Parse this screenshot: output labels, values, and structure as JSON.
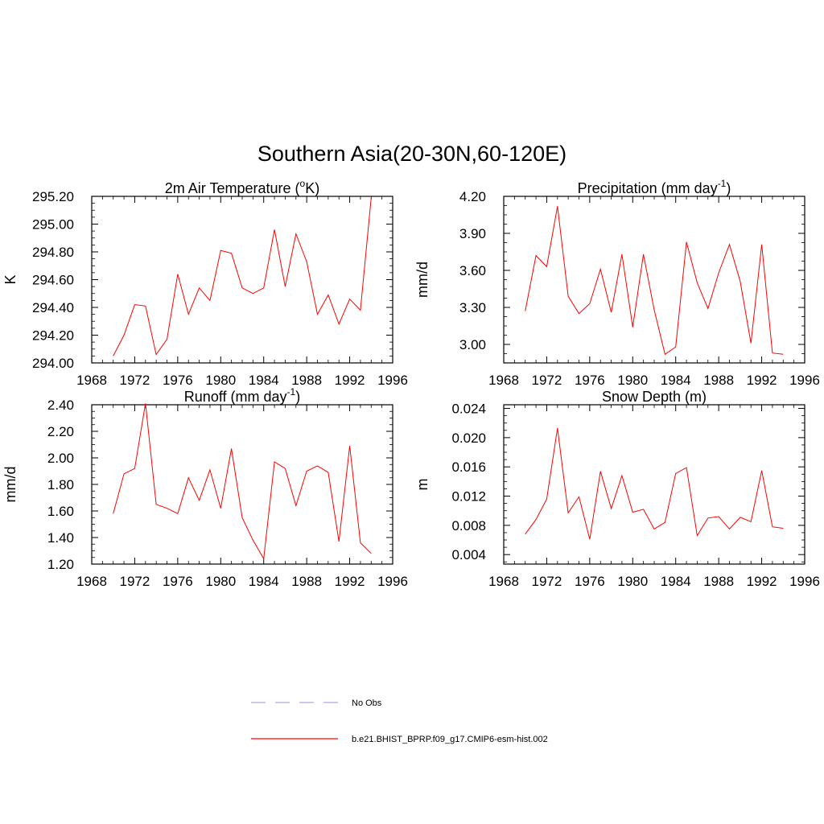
{
  "figure": {
    "title": "Southern Asia(20-30N,60-120E)",
    "line_color": "#ff0000",
    "obs_color": "#a8a8f0"
  },
  "legend": {
    "position": "bottom-center",
    "entries": [
      {
        "name": "No Obs",
        "style": "dashed",
        "color": "#a8a8f0"
      },
      {
        "name": "b.e21.BHIST_BPRP.f09_g17.CMIP6-esm-hist.002",
        "style": "solid",
        "color": "#ff0000"
      }
    ]
  },
  "chart_data": [
    {
      "type": "line",
      "title": "2m Air Temperature (",
      "title_sup": "o",
      "title_suffix": "K)",
      "xlabel": "",
      "ylabel": "K",
      "xlim": [
        1968,
        1996
      ],
      "ylim": [
        294.0,
        295.2
      ],
      "grid": false,
      "x_ticks": [
        "1968",
        "1972",
        "1976",
        "1980",
        "1984",
        "1988",
        "1992",
        "1996"
      ],
      "y_ticks": [
        "294.00",
        "294.20",
        "294.40",
        "294.60",
        "294.80",
        "295.00",
        "295.20"
      ],
      "x": [
        1970,
        1971,
        1972,
        1973,
        1974,
        1975,
        1976,
        1977,
        1978,
        1979,
        1980,
        1981,
        1982,
        1983,
        1984,
        1985,
        1986,
        1987,
        1988,
        1989,
        1990,
        1991,
        1992,
        1993,
        1994
      ],
      "series": [
        {
          "name": "b.e21.BHIST_BPRP.f09_g17.CMIP6-esm-hist.002",
          "values": [
            294.05,
            294.2,
            294.42,
            294.41,
            294.06,
            294.17,
            294.64,
            294.35,
            294.54,
            294.45,
            294.81,
            294.79,
            294.54,
            294.5,
            294.54,
            294.96,
            294.55,
            294.93,
            294.73,
            294.35,
            294.49,
            294.28,
            294.46,
            294.38,
            295.19
          ]
        }
      ]
    },
    {
      "type": "line",
      "title": "Precipitation (mm day",
      "title_sup": "-1",
      "title_suffix": ")",
      "xlabel": "",
      "ylabel": "mm/d",
      "xlim": [
        1968,
        1996
      ],
      "ylim": [
        2.85,
        4.2
      ],
      "grid": false,
      "x_ticks": [
        "1968",
        "1972",
        "1976",
        "1980",
        "1984",
        "1988",
        "1992",
        "1996"
      ],
      "y_ticks": [
        "3.00",
        "3.30",
        "3.60",
        "3.90",
        "4.20"
      ],
      "x": [
        1970,
        1971,
        1972,
        1973,
        1974,
        1975,
        1976,
        1977,
        1978,
        1979,
        1980,
        1981,
        1982,
        1983,
        1984,
        1985,
        1986,
        1987,
        1988,
        1989,
        1990,
        1991,
        1992,
        1993,
        1994
      ],
      "series": [
        {
          "name": "b.e21.BHIST_BPRP.f09_g17.CMIP6-esm-hist.002",
          "values": [
            3.27,
            3.72,
            3.63,
            4.12,
            3.39,
            3.25,
            3.33,
            3.61,
            3.26,
            3.73,
            3.14,
            3.73,
            3.28,
            2.92,
            2.98,
            3.83,
            3.5,
            3.29,
            3.58,
            3.81,
            3.51,
            3.01,
            3.81,
            2.93,
            2.92
          ]
        }
      ]
    },
    {
      "type": "line",
      "title": "Runoff (mm day",
      "title_sup": "-1",
      "title_suffix": ")",
      "xlabel": "",
      "ylabel": "mm/d",
      "xlim": [
        1968,
        1996
      ],
      "ylim": [
        1.2,
        2.4
      ],
      "grid": false,
      "x_ticks": [
        "1968",
        "1972",
        "1976",
        "1980",
        "1984",
        "1988",
        "1992",
        "1996"
      ],
      "y_ticks": [
        "1.20",
        "1.40",
        "1.60",
        "1.80",
        "2.00",
        "2.20",
        "2.40"
      ],
      "x": [
        1970,
        1971,
        1972,
        1973,
        1974,
        1975,
        1976,
        1977,
        1978,
        1979,
        1980,
        1981,
        1982,
        1983,
        1984,
        1985,
        1986,
        1987,
        1988,
        1989,
        1990,
        1991,
        1992,
        1993,
        1994
      ],
      "series": [
        {
          "name": "b.e21.BHIST_BPRP.f09_g17.CMIP6-esm-hist.002",
          "values": [
            1.58,
            1.88,
            1.92,
            2.41,
            1.65,
            1.62,
            1.58,
            1.85,
            1.68,
            1.91,
            1.62,
            2.07,
            1.55,
            1.38,
            1.24,
            1.97,
            1.92,
            1.64,
            1.9,
            1.94,
            1.89,
            1.37,
            2.09,
            1.36,
            1.28
          ]
        }
      ]
    },
    {
      "type": "line",
      "title": "Snow Depth (m)",
      "title_sup": "",
      "title_suffix": "",
      "xlabel": "",
      "ylabel": "m",
      "xlim": [
        1968,
        1996
      ],
      "ylim": [
        0.0027,
        0.0245
      ],
      "grid": false,
      "x_ticks": [
        "1968",
        "1972",
        "1976",
        "1980",
        "1984",
        "1988",
        "1992",
        "1996"
      ],
      "y_ticks": [
        "0.004",
        "0.008",
        "0.012",
        "0.016",
        "0.020",
        "0.024"
      ],
      "x": [
        1970,
        1971,
        1972,
        1973,
        1974,
        1975,
        1976,
        1977,
        1978,
        1979,
        1980,
        1981,
        1982,
        1983,
        1984,
        1985,
        1986,
        1987,
        1988,
        1989,
        1990,
        1991,
        1992,
        1993,
        1994
      ],
      "series": [
        {
          "name": "b.e21.BHIST_BPRP.f09_g17.CMIP6-esm-hist.002",
          "values": [
            0.0068,
            0.0088,
            0.0116,
            0.0213,
            0.0097,
            0.0119,
            0.0061,
            0.0154,
            0.0103,
            0.0148,
            0.0098,
            0.0102,
            0.0075,
            0.0084,
            0.0151,
            0.0159,
            0.0066,
            0.009,
            0.0092,
            0.0075,
            0.0091,
            0.0085,
            0.0155,
            0.0078,
            0.0076
          ]
        }
      ]
    }
  ]
}
